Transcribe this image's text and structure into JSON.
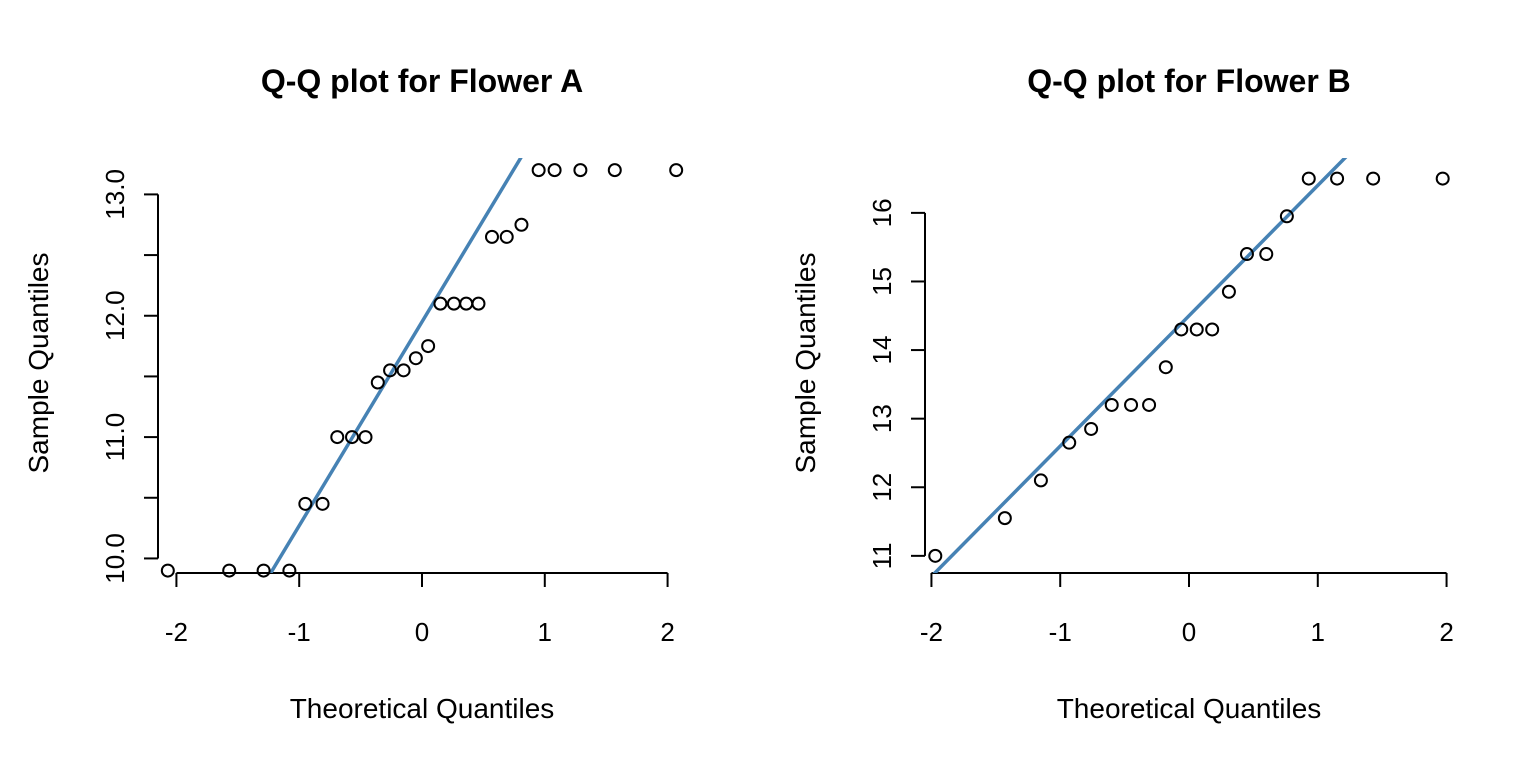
{
  "chart_data": [
    {
      "type": "scatter",
      "title": "Q-Q plot for Flower A",
      "xlabel": "Theoretical Quantiles",
      "ylabel": "Sample Quantiles",
      "xlim": [
        -2.15,
        2.15
      ],
      "ylim": [
        9.88,
        13.3
      ],
      "xticks": [
        -2,
        -1,
        0,
        1,
        2
      ],
      "xtick_labels": [
        "-2",
        "-1",
        "0",
        "1",
        "2"
      ],
      "yticks": [
        10.0,
        10.5,
        11.0,
        11.5,
        12.0,
        12.5,
        13.0
      ],
      "ytick_labels": [
        "10.0",
        "",
        "11.0",
        "",
        "12.0",
        "",
        "13.0"
      ],
      "grid": false,
      "line_color": "#4682B4",
      "reference_line": {
        "slope": 1.68,
        "intercept": 11.95
      },
      "x": [
        -2.07,
        -1.57,
        -1.29,
        -1.08,
        -0.95,
        -0.81,
        -0.69,
        -0.57,
        -0.46,
        -0.36,
        -0.26,
        -0.15,
        -0.05,
        0.05,
        0.15,
        0.26,
        0.36,
        0.46,
        0.57,
        0.69,
        0.81,
        0.95,
        1.08,
        1.29,
        1.57,
        2.07
      ],
      "y": [
        9.9,
        9.9,
        9.9,
        9.9,
        10.45,
        10.45,
        11.0,
        11.0,
        11.0,
        11.45,
        11.55,
        11.55,
        11.65,
        11.75,
        12.1,
        12.1,
        12.1,
        12.1,
        12.65,
        12.65,
        12.75,
        13.2,
        13.2,
        13.2,
        13.2,
        13.2
      ]
    },
    {
      "type": "scatter",
      "title": "Q-Q plot for Flower B",
      "xlabel": "Theoretical Quantiles",
      "ylabel": "Sample Quantiles",
      "xlim": [
        -2.05,
        2.05
      ],
      "ylim": [
        10.75,
        16.8
      ],
      "xticks": [
        -2,
        -1,
        0,
        1,
        2
      ],
      "xtick_labels": [
        "-2",
        "-1",
        "0",
        "1",
        "2"
      ],
      "yticks": [
        11,
        12,
        13,
        14,
        15,
        16
      ],
      "ytick_labels": [
        "11",
        "12",
        "13",
        "14",
        "15",
        "16"
      ],
      "grid": false,
      "line_color": "#4682B4",
      "reference_line": {
        "slope": 1.9,
        "intercept": 14.5
      },
      "x": [
        -1.97,
        -1.43,
        -1.15,
        -0.93,
        -0.76,
        -0.6,
        -0.45,
        -0.31,
        -0.18,
        -0.06,
        0.06,
        0.18,
        0.31,
        0.45,
        0.6,
        0.76,
        0.93,
        1.15,
        1.43,
        1.97
      ],
      "y": [
        11.0,
        11.55,
        12.1,
        12.65,
        12.85,
        13.2,
        13.2,
        13.2,
        13.75,
        14.3,
        14.3,
        14.3,
        14.85,
        15.4,
        15.4,
        15.95,
        16.5,
        16.5,
        16.5,
        16.5
      ]
    }
  ]
}
